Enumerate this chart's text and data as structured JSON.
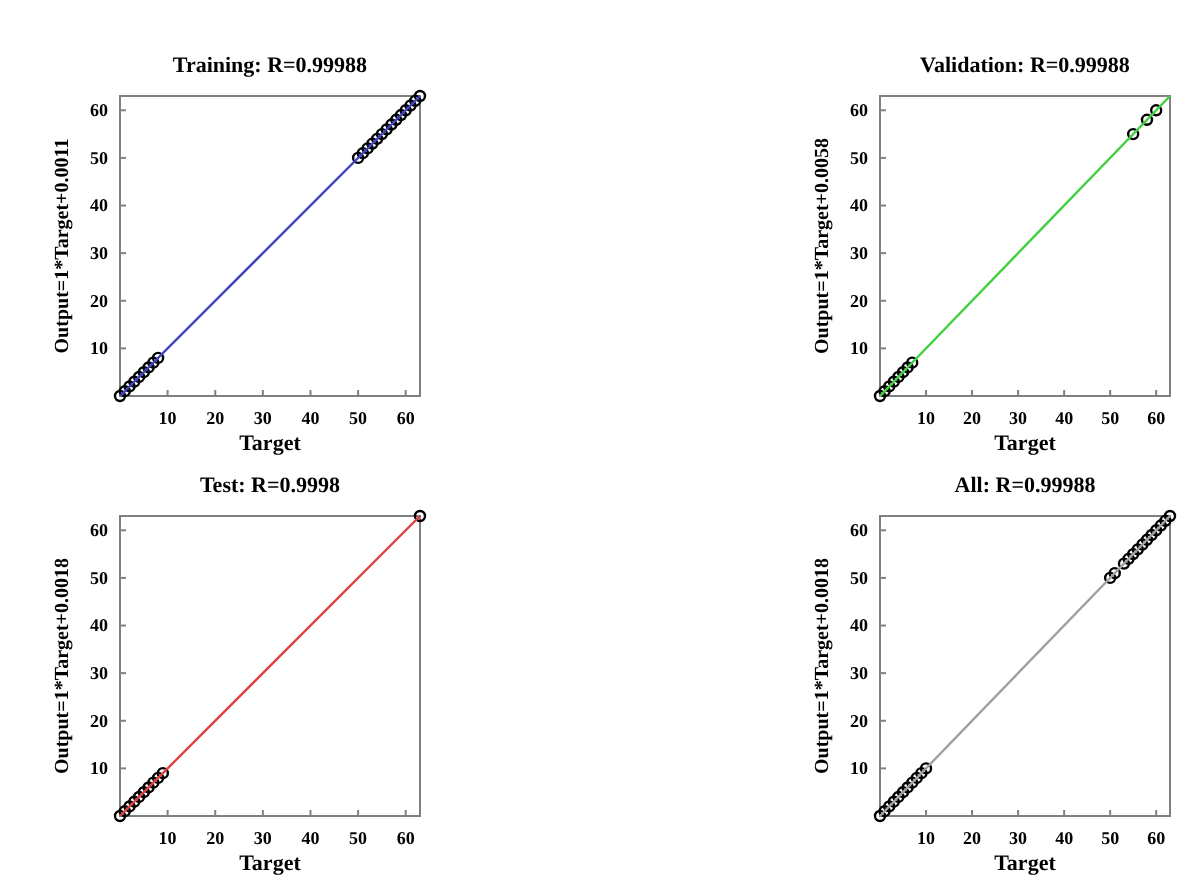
{
  "chart_data": [
    {
      "type": "scatter",
      "title": "Training: R=0.99988",
      "xlabel": "Target",
      "ylabel": "Output=1*Target+0.0011",
      "xlim": [
        0,
        63
      ],
      "ylim": [
        0,
        63
      ],
      "xticks": [
        10,
        20,
        30,
        40,
        50,
        60
      ],
      "yticks": [
        10,
        20,
        30,
        40,
        50,
        60
      ],
      "series": [
        {
          "marker": "circle",
          "color": "#000000",
          "x": [
            0,
            1,
            2,
            3,
            4,
            5,
            6,
            7,
            8,
            50,
            51,
            52,
            53,
            54,
            55,
            56,
            57,
            58,
            59,
            60,
            61,
            62,
            63
          ],
          "values": [
            0,
            1,
            2,
            3,
            4,
            5,
            6,
            7,
            8,
            50,
            51,
            52,
            53,
            54,
            55,
            56,
            57,
            58,
            59,
            60,
            61,
            62,
            63
          ]
        },
        {
          "type": "line",
          "marker": "none",
          "color": "#4040c0",
          "x": [
            0,
            63
          ],
          "values": [
            0,
            63
          ]
        }
      ]
    },
    {
      "type": "scatter",
      "title": "Validation: R=0.99988",
      "xlabel": "Target",
      "ylabel": "Output=1*Target+0.0058",
      "xlim": [
        0,
        63
      ],
      "ylim": [
        0,
        63
      ],
      "xticks": [
        10,
        20,
        30,
        40,
        50,
        60
      ],
      "yticks": [
        10,
        20,
        30,
        40,
        50,
        60
      ],
      "series": [
        {
          "marker": "circle",
          "color": "#000000",
          "x": [
            0,
            1,
            2,
            3,
            4,
            5,
            6,
            7,
            55,
            58,
            60
          ],
          "values": [
            0,
            1,
            2,
            3,
            4,
            5,
            6,
            7,
            55,
            58,
            60
          ]
        },
        {
          "type": "line",
          "marker": "none",
          "color": "#40d040",
          "x": [
            0,
            63
          ],
          "values": [
            0,
            63
          ]
        }
      ]
    },
    {
      "type": "scatter",
      "title": "Test: R=0.9998",
      "xlabel": "Target",
      "ylabel": "Output=1*Target+0.0018",
      "xlim": [
        0,
        63
      ],
      "ylim": [
        0,
        63
      ],
      "xticks": [
        10,
        20,
        30,
        40,
        50,
        60
      ],
      "yticks": [
        10,
        20,
        30,
        40,
        50,
        60
      ],
      "series": [
        {
          "marker": "circle",
          "color": "#000000",
          "x": [
            0,
            1,
            2,
            3,
            4,
            5,
            6,
            7,
            8,
            9,
            63
          ],
          "values": [
            0,
            1,
            2,
            3,
            4,
            5,
            6,
            7,
            8,
            9,
            63
          ]
        },
        {
          "type": "line",
          "marker": "none",
          "color": "#e04040",
          "x": [
            0,
            63
          ],
          "values": [
            0,
            63
          ]
        }
      ]
    },
    {
      "type": "scatter",
      "title": "All: R=0.99988",
      "xlabel": "Target",
      "ylabel": "Output=1*Target+0.0018",
      "xlim": [
        0,
        63
      ],
      "ylim": [
        0,
        63
      ],
      "xticks": [
        10,
        20,
        30,
        40,
        50,
        60
      ],
      "yticks": [
        10,
        20,
        30,
        40,
        50,
        60
      ],
      "series": [
        {
          "marker": "circle",
          "color": "#000000",
          "x": [
            0,
            1,
            2,
            3,
            4,
            5,
            6,
            7,
            8,
            9,
            10,
            50,
            51,
            53,
            54,
            55,
            56,
            57,
            58,
            59,
            60,
            61,
            62,
            63
          ],
          "values": [
            0,
            1,
            2,
            3,
            4,
            5,
            6,
            7,
            8,
            9,
            10,
            50,
            51,
            53,
            54,
            55,
            56,
            57,
            58,
            59,
            60,
            61,
            62,
            63
          ]
        },
        {
          "type": "line",
          "marker": "none",
          "color": "#a0a0a0",
          "x": [
            0,
            63
          ],
          "values": [
            0,
            63
          ]
        }
      ]
    }
  ]
}
